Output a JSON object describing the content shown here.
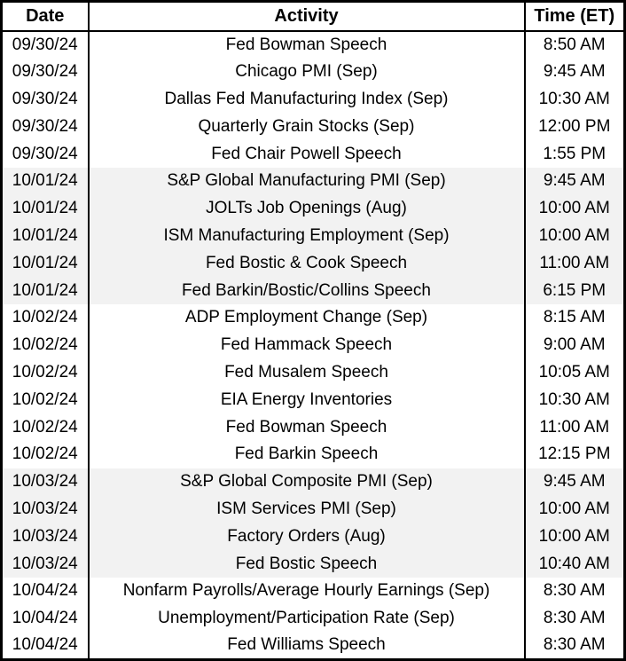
{
  "chart_data": {
    "type": "table",
    "columns": [
      "Date",
      "Activity",
      "Time (ET)"
    ],
    "rows": [
      [
        "09/30/24",
        "Fed Bowman Speech",
        "8:50 AM"
      ],
      [
        "09/30/24",
        "Chicago PMI (Sep)",
        "9:45 AM"
      ],
      [
        "09/30/24",
        "Dallas Fed Manufacturing Index (Sep)",
        "10:30 AM"
      ],
      [
        "09/30/24",
        "Quarterly Grain Stocks (Sep)",
        "12:00 PM"
      ],
      [
        "09/30/24",
        "Fed Chair Powell Speech",
        "1:55 PM"
      ],
      [
        "10/01/24",
        "S&P Global Manufacturing PMI (Sep)",
        "9:45 AM"
      ],
      [
        "10/01/24",
        "JOLTs Job Openings (Aug)",
        "10:00 AM"
      ],
      [
        "10/01/24",
        "ISM Manufacturing Employment (Sep)",
        "10:00 AM"
      ],
      [
        "10/01/24",
        "Fed Bostic & Cook Speech",
        "11:00 AM"
      ],
      [
        "10/01/24",
        "Fed Barkin/Bostic/Collins Speech",
        "6:15 PM"
      ],
      [
        "10/02/24",
        "ADP Employment Change (Sep)",
        "8:15 AM"
      ],
      [
        "10/02/24",
        "Fed Hammack Speech",
        "9:00 AM"
      ],
      [
        "10/02/24",
        "Fed Musalem Speech",
        "10:05 AM"
      ],
      [
        "10/02/24",
        "EIA Energy Inventories",
        "10:30 AM"
      ],
      [
        "10/02/24",
        "Fed Bowman Speech",
        "11:00 AM"
      ],
      [
        "10/02/24",
        "Fed Barkin Speech",
        "12:15 PM"
      ],
      [
        "10/03/24",
        "S&P Global Composite PMI (Sep)",
        "9:45 AM"
      ],
      [
        "10/03/24",
        "ISM Services PMI (Sep)",
        "10:00 AM"
      ],
      [
        "10/03/24",
        "Factory Orders (Aug)",
        "10:00 AM"
      ],
      [
        "10/03/24",
        "Fed Bostic Speech",
        "10:40 AM"
      ],
      [
        "10/04/24",
        "Nonfarm Payrolls/Average Hourly Earnings (Sep)",
        "8:30 AM"
      ],
      [
        "10/04/24",
        "Unemployment/Participation Rate (Sep)",
        "8:30 AM"
      ],
      [
        "10/04/24",
        "Fed Williams Speech",
        "8:30 AM"
      ]
    ]
  },
  "colors": {
    "background": "#ffffff",
    "stripe": "#f2f2f2",
    "border": "#000000",
    "text": "#000000"
  }
}
